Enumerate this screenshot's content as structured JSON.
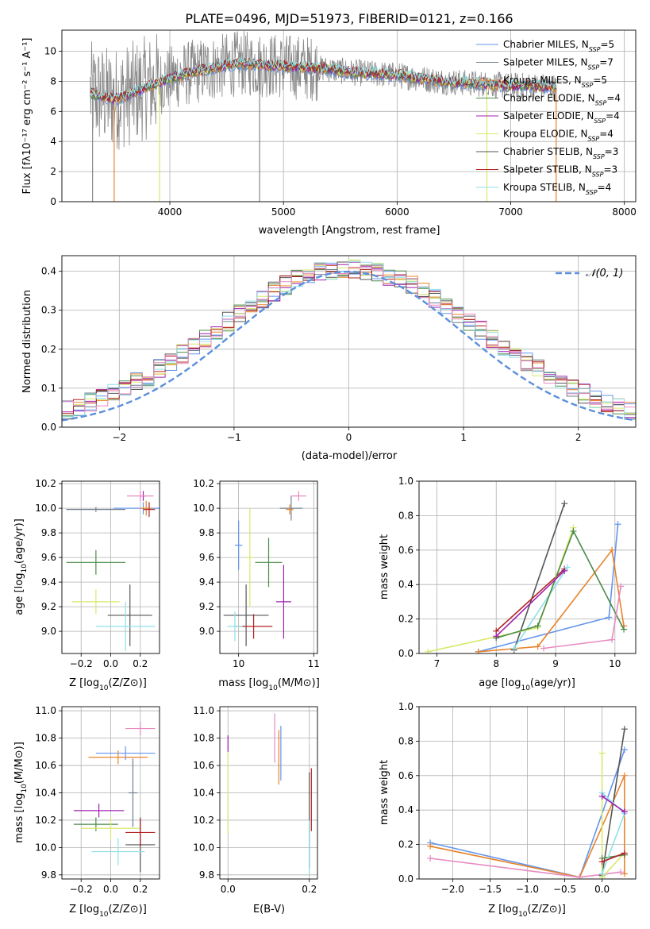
{
  "figure_title": "PLATE=0496, MJD=51973, FIBERID=0121, z=0.166",
  "palette": [
    "#6495ED",
    "#708090",
    "#E8832A",
    "#4C8C4A",
    "#A020B0",
    "#D9E86B",
    "#555555",
    "#B22222",
    "#8FE0E8",
    "#E88AC0",
    "#888888"
  ],
  "chart_data": [
    {
      "type": "line",
      "id": "spectrum",
      "title": "PLATE=0496, MJD=51973, FIBERID=0121, z=0.166",
      "xlabel": "wavelength [Angstrom, rest frame]",
      "ylabel": "Flux [fλ10⁻¹⁷ erg cm⁻² s⁻¹ A⁻¹]",
      "xlim": [
        3050,
        8100
      ],
      "ylim": [
        0,
        11.4
      ],
      "xticks": [
        4000,
        5000,
        6000,
        7000,
        8000
      ],
      "yticks": [
        0,
        2,
        4,
        6,
        8,
        10
      ],
      "grid": true,
      "legend_position": "top-right",
      "data_series": {
        "name": "",
        "color": "#888888",
        "x_range": [
          3300,
          7400
        ],
        "typical": 8.5,
        "min": 0,
        "max": 11.4
      },
      "model_series": [
        {
          "name": "Chabrier MILES, N_SSP=5",
          "label_base": "Chabrier MILES, N",
          "label_sub": "SSP",
          "label_end": "=5",
          "color": "#6495ED"
        },
        {
          "name": "Salpeter MILES, N_SSP=7",
          "label_base": "Salpeter MILES, N",
          "label_sub": "SSP",
          "label_end": "=7",
          "color": "#708090"
        },
        {
          "name": "Kroupa MILES, N_SSP=5",
          "label_base": "Kroupa MILES, N",
          "label_sub": "SSP",
          "label_end": "=5",
          "color": "#E8832A"
        },
        {
          "name": "Chabrier ELODIE, N_SSP=4",
          "label_base": "Chabrier ELODIE, N",
          "label_sub": "SSP",
          "label_end": "=4",
          "color": "#4C8C4A"
        },
        {
          "name": "Salpeter ELODIE, N_SSP=4",
          "label_base": "Salpeter ELODIE, N",
          "label_sub": "SSP",
          "label_end": "=4",
          "color": "#A020B0"
        },
        {
          "name": "Kroupa ELODIE, N_SSP=4",
          "label_base": "Kroupa ELODIE, N",
          "label_sub": "SSP",
          "label_end": "=4",
          "color": "#D9E86B"
        },
        {
          "name": "Chabrier STELIB, N_SSP=3",
          "label_base": "Chabrier STELIB, N",
          "label_sub": "SSP",
          "label_end": "=3",
          "color": "#555555"
        },
        {
          "name": "Salpeter STELIB, N_SSP=3",
          "label_base": "Salpeter STELIB, N",
          "label_sub": "SSP",
          "label_end": "=3",
          "color": "#B22222"
        },
        {
          "name": "Kroupa STELIB, N_SSP=4",
          "label_base": "Kroupa STELIB, N",
          "label_sub": "SSP",
          "label_end": "=4",
          "color": "#8FE0E8"
        }
      ],
      "continuum": [
        [
          3300,
          7.2
        ],
        [
          3400,
          7.0
        ],
        [
          3500,
          6.8
        ],
        [
          3600,
          7.0
        ],
        [
          3700,
          7.3
        ],
        [
          3800,
          7.6
        ],
        [
          3900,
          7.9
        ],
        [
          4000,
          8.2
        ],
        [
          4200,
          8.6
        ],
        [
          4400,
          8.9
        ],
        [
          4600,
          9.2
        ],
        [
          4800,
          9.1
        ],
        [
          5000,
          9.0
        ],
        [
          5200,
          8.9
        ],
        [
          5400,
          8.8
        ],
        [
          5600,
          8.6
        ],
        [
          5800,
          8.5
        ],
        [
          6000,
          8.4
        ],
        [
          6200,
          8.2
        ],
        [
          6400,
          8.0
        ],
        [
          6600,
          7.9
        ],
        [
          6800,
          7.8
        ],
        [
          7000,
          7.7
        ],
        [
          7200,
          7.7
        ],
        [
          7400,
          7.6
        ]
      ]
    },
    {
      "type": "histogram",
      "id": "residuals",
      "xlabel": "(data-model)/error",
      "ylabel": "Normed distribution",
      "xlim": [
        -2.5,
        2.5
      ],
      "ylim": [
        0,
        0.44
      ],
      "xticks": [
        -2,
        -1,
        0,
        1,
        2
      ],
      "yticks": [
        0.0,
        0.1,
        0.2,
        0.3,
        0.4
      ],
      "grid": true,
      "legend_position": "top-right",
      "reference_curve": {
        "name": "𝒩(0, 1)",
        "mean": 0,
        "sigma": 1,
        "color": "#5B8FDB"
      },
      "bin_edges_range": [
        -2.5,
        2.5
      ],
      "bin_count": 50
    },
    {
      "type": "scatter",
      "id": "age_vs_Z",
      "xlabel_base": "Z [log",
      "xlabel_sub": "10",
      "xlabel_end": "(Z/Z⊙)]",
      "ylabel_base": "age  [log",
      "ylabel_sub": "10",
      "ylabel_end": "(age/yr)]",
      "xlim": [
        -0.33,
        0.33
      ],
      "ylim": [
        8.82,
        10.22
      ],
      "xticks": [
        -0.2,
        0.0,
        0.2
      ],
      "yticks": [
        9.0,
        9.2,
        9.4,
        9.6,
        9.8,
        10.0,
        10.2
      ],
      "points": [
        {
          "c": "#6495ED",
          "x": 0.22,
          "y": 10.0,
          "xe": 0.2,
          "ye": 0.05
        },
        {
          "c": "#708090",
          "x": -0.1,
          "y": 9.99,
          "xe": 0.2,
          "ye": 0.02
        },
        {
          "c": "#E8832A",
          "x": 0.24,
          "y": 10.0,
          "xe": 0.04,
          "ye": 0.06
        },
        {
          "c": "#4C8C4A",
          "x": -0.1,
          "y": 9.56,
          "xe": 0.2,
          "ye": 0.1
        },
        {
          "c": "#A020B0",
          "x": 0.22,
          "y": 10.1,
          "xe": 0.02,
          "ye": 0.04
        },
        {
          "c": "#D9E86B",
          "x": -0.1,
          "y": 9.24,
          "xe": 0.16,
          "ye": 0.1
        },
        {
          "c": "#555555",
          "x": 0.13,
          "y": 9.13,
          "xe": 0.15,
          "ye": 0.25
        },
        {
          "c": "#B22222",
          "x": 0.26,
          "y": 9.99,
          "xe": 0.04,
          "ye": 0.06
        },
        {
          "c": "#8FE0E8",
          "x": 0.1,
          "y": 9.04,
          "xe": 0.2,
          "ye": 0.2
        },
        {
          "c": "#E88AC0",
          "x": 0.2,
          "y": 10.1,
          "xe": 0.09,
          "ye": 0.04
        }
      ]
    },
    {
      "type": "scatter",
      "id": "age_vs_mass",
      "xlabel_base": "mass [log",
      "xlabel_sub": "10",
      "xlabel_end": "(M/M⊙)]",
      "xlim": [
        9.75,
        11.05
      ],
      "ylim": [
        8.82,
        10.22
      ],
      "xticks": [
        10,
        11
      ],
      "yticks": [
        9.0,
        9.2,
        9.4,
        9.6,
        9.8,
        10.0,
        10.2
      ],
      "points": [
        {
          "c": "#6495ED",
          "x": 10.0,
          "y": 9.7,
          "xe": 0.05,
          "ye": 0.2
        },
        {
          "c": "#708090",
          "x": 10.7,
          "y": 10.0,
          "xe": 0.15,
          "ye": 0.1
        },
        {
          "c": "#E8832A",
          "x": 10.68,
          "y": 9.99,
          "xe": 0.05,
          "ye": 0.04
        },
        {
          "c": "#4C8C4A",
          "x": 10.4,
          "y": 9.56,
          "xe": 0.18,
          "ye": 0.2
        },
        {
          "c": "#A020B0",
          "x": 10.6,
          "y": 9.24,
          "xe": 0.1,
          "ye": 0.3
        },
        {
          "c": "#D9E86B",
          "x": 10.15,
          "y": 9.6,
          "xe": 0.05,
          "ye": 0.4
        },
        {
          "c": "#555555",
          "x": 10.1,
          "y": 9.13,
          "xe": 0.3,
          "ye": 0.25
        },
        {
          "c": "#B22222",
          "x": 10.2,
          "y": 9.04,
          "xe": 0.25,
          "ye": 0.1
        },
        {
          "c": "#8FE0E8",
          "x": 9.95,
          "y": 9.04,
          "xe": 0.1,
          "ye": 0.12
        },
        {
          "c": "#E88AC0",
          "x": 10.8,
          "y": 10.1,
          "xe": 0.1,
          "ye": 0.04
        }
      ]
    },
    {
      "type": "line",
      "id": "massweight_vs_age",
      "ylabel": "mass weight",
      "xlabel_base": "age  [log",
      "xlabel_sub": "10",
      "xlabel_end": "(age/yr)]",
      "xlim": [
        6.7,
        10.35
      ],
      "ylim": [
        0,
        1.0
      ],
      "xticks": [
        7,
        8,
        9,
        10
      ],
      "yticks": [
        0.0,
        0.2,
        0.4,
        0.6,
        0.8,
        1.0
      ],
      "series": [
        {
          "c": "#6495ED",
          "pts": [
            [
              7.7,
              0.01
            ],
            [
              9.9,
              0.21
            ],
            [
              10.05,
              0.75
            ]
          ]
        },
        {
          "c": "#E8832A",
          "pts": [
            [
              7.7,
              0.01
            ],
            [
              8.7,
              0.04
            ],
            [
              9.95,
              0.6
            ],
            [
              10.15,
              0.16
            ]
          ]
        },
        {
          "c": "#555555",
          "pts": [
            [
              8.3,
              0.02
            ],
            [
              9.15,
              0.87
            ]
          ]
        },
        {
          "c": "#B22222",
          "pts": [
            [
              8.0,
              0.13
            ],
            [
              9.15,
              0.49
            ]
          ]
        },
        {
          "c": "#8FE0E8",
          "pts": [
            [
              8.3,
              0.03
            ],
            [
              9.2,
              0.5
            ]
          ]
        },
        {
          "c": "#D9E86B",
          "pts": [
            [
              6.85,
              0.01
            ],
            [
              8.7,
              0.15
            ],
            [
              9.3,
              0.73
            ]
          ]
        },
        {
          "c": "#4C8C4A",
          "pts": [
            [
              8.0,
              0.09
            ],
            [
              8.7,
              0.16
            ],
            [
              9.3,
              0.71
            ],
            [
              10.15,
              0.14
            ]
          ]
        },
        {
          "c": "#E88AC0",
          "pts": [
            [
              8.8,
              0.03
            ],
            [
              9.95,
              0.08
            ],
            [
              10.1,
              0.39
            ]
          ]
        },
        {
          "c": "#A020B0",
          "pts": [
            [
              8.0,
              0.1
            ],
            [
              9.15,
              0.48
            ]
          ]
        }
      ]
    },
    {
      "type": "scatter",
      "id": "mass_vs_Z",
      "xlabel_base": "Z [log",
      "xlabel_sub": "10",
      "xlabel_end": "(Z/Z⊙)]",
      "ylabel_base": "mass [log",
      "ylabel_sub": "10",
      "ylabel_end": "(M/M⊙)]",
      "xlim": [
        -0.33,
        0.33
      ],
      "ylim": [
        9.77,
        11.03
      ],
      "xticks": [
        -0.2,
        0.0,
        0.2
      ],
      "yticks": [
        9.8,
        10.0,
        10.2,
        10.4,
        10.6,
        10.8,
        11.0
      ],
      "points": [
        {
          "c": "#6495ED",
          "x": 0.1,
          "y": 10.69,
          "xe": 0.2,
          "ye": 0.05
        },
        {
          "c": "#E8832A",
          "x": 0.05,
          "y": 10.66,
          "xe": 0.2,
          "ye": 0.05
        },
        {
          "c": "#4C8C4A",
          "x": -0.1,
          "y": 10.17,
          "xe": 0.15,
          "ye": 0.05
        },
        {
          "c": "#A020B0",
          "x": -0.08,
          "y": 10.27,
          "xe": 0.17,
          "ye": 0.05
        },
        {
          "c": "#D9E86B",
          "x": 0.0,
          "y": 10.14,
          "xe": 0.2,
          "ye": 0.08
        },
        {
          "c": "#555555",
          "x": 0.2,
          "y": 10.02,
          "xe": 0.1,
          "ye": 0.2
        },
        {
          "c": "#B22222",
          "x": 0.2,
          "y": 10.11,
          "xe": 0.1,
          "ye": 0.1
        },
        {
          "c": "#8FE0E8",
          "x": 0.05,
          "y": 9.97,
          "xe": 0.18,
          "ye": 0.1
        },
        {
          "c": "#E88AC0",
          "x": 0.2,
          "y": 10.87,
          "xe": 0.1,
          "ye": 0.05
        },
        {
          "c": "#708090",
          "x": 0.15,
          "y": 10.4,
          "xe": 0.03,
          "ye": 0.25
        }
      ]
    },
    {
      "type": "scatter",
      "id": "mass_vs_ebv",
      "xlabel": "E(B-V)",
      "xlim": [
        -0.02,
        0.22
      ],
      "ylim": [
        9.77,
        11.03
      ],
      "xticks": [
        0.0,
        0.2
      ],
      "yticks": [
        9.8,
        10.0,
        10.2,
        10.4,
        10.6,
        10.8,
        11.0
      ],
      "points": [
        {
          "c": "#D9E86B",
          "x": 0.0,
          "y": 10.4,
          "xe": 0.0,
          "ye": 0.3
        },
        {
          "c": "#A020B0",
          "x": 0.0,
          "y": 10.76,
          "xe": 0.0,
          "ye": 0.06
        },
        {
          "c": "#E88AC0",
          "x": 0.115,
          "y": 10.8,
          "xe": 0.0,
          "ye": 0.18
        },
        {
          "c": "#E8832A",
          "x": 0.125,
          "y": 10.66,
          "xe": 0.0,
          "ye": 0.2
        },
        {
          "c": "#6495ED",
          "x": 0.13,
          "y": 10.69,
          "xe": 0.0,
          "ye": 0.2
        },
        {
          "c": "#555555",
          "x": 0.2,
          "y": 10.2,
          "xe": 0.0,
          "ye": 0.35
        },
        {
          "c": "#B22222",
          "x": 0.205,
          "y": 10.35,
          "xe": 0.0,
          "ye": 0.23
        },
        {
          "c": "#8FE0E8",
          "x": 0.2,
          "y": 10.0,
          "xe": 0.0,
          "ye": 0.2
        }
      ]
    },
    {
      "type": "line",
      "id": "massweight_vs_Z",
      "ylabel": "mass weight",
      "xlabel_base": "Z [log",
      "xlabel_sub": "10",
      "xlabel_end": "(Z/Z⊙)]",
      "xlim": [
        -2.45,
        0.45
      ],
      "ylim": [
        0,
        1.0
      ],
      "xticks": [
        -2.0,
        -1.5,
        -1.0,
        -0.5,
        0.0
      ],
      "yticks": [
        0.0,
        0.2,
        0.4,
        0.6,
        0.8,
        1.0
      ],
      "series": [
        {
          "c": "#6495ED",
          "pts": [
            [
              -2.3,
              0.21
            ],
            [
              -0.3,
              0.01
            ],
            [
              0.3,
              0.75
            ]
          ]
        },
        {
          "c": "#E8832A",
          "pts": [
            [
              -2.3,
              0.19
            ],
            [
              -0.3,
              0.01
            ],
            [
              0.3,
              0.6
            ],
            [
              0.3,
              0.03
            ]
          ]
        },
        {
          "c": "#E88AC0",
          "pts": [
            [
              -2.3,
              0.12
            ],
            [
              -0.3,
              0.01
            ],
            [
              0.25,
              0.04
            ]
          ]
        },
        {
          "c": "#555555",
          "pts": [
            [
              0.0,
              0.02
            ],
            [
              0.3,
              0.87
            ]
          ]
        },
        {
          "c": "#D9E86B",
          "pts": [
            [
              0.0,
              0.73
            ],
            [
              0.0,
              0.01
            ],
            [
              0.3,
              0.15
            ]
          ]
        },
        {
          "c": "#4C8C4A",
          "pts": [
            [
              0.0,
              0.12
            ],
            [
              0.3,
              0.14
            ]
          ]
        },
        {
          "c": "#8FE0E8",
          "pts": [
            [
              0.0,
              0.5
            ],
            [
              0.3,
              0.38
            ],
            [
              0.0,
              0.03
            ]
          ]
        },
        {
          "c": "#A020B0",
          "pts": [
            [
              0.0,
              0.48
            ],
            [
              0.3,
              0.39
            ]
          ]
        },
        {
          "c": "#B22222",
          "pts": [
            [
              0.0,
              0.1
            ],
            [
              0.3,
              0.15
            ]
          ]
        }
      ]
    }
  ]
}
